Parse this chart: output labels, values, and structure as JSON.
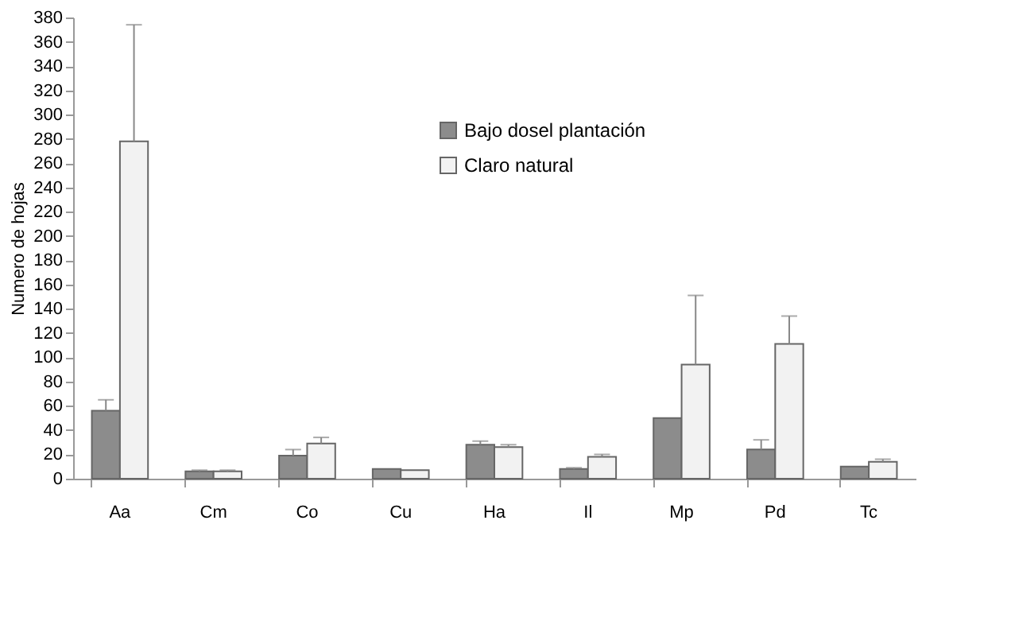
{
  "chart_data": {
    "type": "bar",
    "ylabel": "Numero de hojas",
    "categories": [
      "Aa",
      "Cm",
      "Co",
      "Cu",
      "Ha",
      "Il",
      "Mp",
      "Pd",
      "Tc"
    ],
    "series": [
      {
        "name": "Bajo dosel plantación",
        "color": "#8c8c8c",
        "values": [
          56,
          6,
          19,
          8,
          28,
          8,
          50,
          24,
          10
        ],
        "errors": [
          [
            56,
            65
          ],
          [
            6,
            7
          ],
          [
            19,
            24
          ],
          null,
          [
            28,
            31
          ],
          [
            8,
            9
          ],
          null,
          [
            24,
            32
          ],
          null
        ]
      },
      {
        "name": "Claro natural",
        "color": "#f2f2f2",
        "values": [
          278,
          6,
          29,
          7,
          26,
          18,
          94,
          111,
          14
        ],
        "errors": [
          [
            278,
            374
          ],
          [
            6,
            7
          ],
          [
            29,
            34
          ],
          null,
          [
            26,
            28
          ],
          [
            18,
            20
          ],
          [
            94,
            151
          ],
          [
            111,
            134
          ],
          [
            14,
            16
          ]
        ]
      }
    ],
    "ylim": [
      0,
      380
    ],
    "yticks": [
      0,
      20,
      40,
      60,
      80,
      100,
      120,
      140,
      160,
      180,
      200,
      220,
      240,
      260,
      280,
      300,
      320,
      340,
      360,
      380
    ],
    "grid": false,
    "legend": "top"
  }
}
